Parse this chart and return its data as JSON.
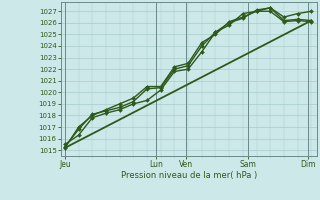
{
  "bg_color": "#cde8e8",
  "grid_color": "#a8cccc",
  "line_color": "#2d5a1b",
  "marker_color": "#2d5a1b",
  "text_color": "#2d5a1b",
  "ylabel_ticks": [
    1015,
    1016,
    1017,
    1018,
    1019,
    1020,
    1021,
    1022,
    1023,
    1024,
    1025,
    1026,
    1027
  ],
  "ylim": [
    1014.5,
    1027.8
  ],
  "xlabel": "Pression niveau de la mer( hPa )",
  "xtick_labels": [
    "Jeu",
    "Lun",
    "Ven",
    "Sam",
    "Dim"
  ],
  "xtick_positions": [
    0.0,
    3.33,
    4.44,
    6.67,
    8.89
  ],
  "vline_positions": [
    0.0,
    3.33,
    4.44,
    6.67,
    8.89
  ],
  "xlim": [
    -0.15,
    9.2
  ],
  "lines": [
    {
      "x": [
        0.0,
        0.5,
        1.0,
        1.5,
        2.0,
        2.5,
        3.0,
        3.5,
        4.0,
        4.5,
        5.0,
        5.5,
        6.0,
        6.5,
        7.0,
        7.5,
        8.0,
        8.5,
        9.0
      ],
      "y": [
        1015.5,
        1016.3,
        1017.8,
        1018.2,
        1018.5,
        1019.0,
        1019.3,
        1020.2,
        1021.8,
        1022.0,
        1023.5,
        1025.2,
        1025.8,
        1026.8,
        1027.0,
        1027.3,
        1026.5,
        1026.8,
        1027.0
      ],
      "lw": 1.0,
      "straight": false
    },
    {
      "x": [
        0.0,
        0.5,
        1.0,
        1.5,
        2.0,
        2.5,
        3.0,
        3.5,
        4.0,
        4.5,
        5.0,
        5.5,
        6.0,
        6.5,
        7.0,
        7.5,
        8.0,
        8.5,
        9.0
      ],
      "y": [
        1015.3,
        1016.8,
        1018.1,
        1018.4,
        1018.7,
        1019.2,
        1020.3,
        1020.4,
        1022.0,
        1022.3,
        1024.0,
        1025.2,
        1026.0,
        1026.4,
        1027.1,
        1027.3,
        1026.2,
        1026.3,
        1026.2
      ],
      "lw": 1.0,
      "straight": false
    },
    {
      "x": [
        0.0,
        0.5,
        1.0,
        1.5,
        2.0,
        2.5,
        3.0,
        3.5,
        4.0,
        4.5,
        5.0,
        5.5,
        6.0,
        6.5,
        7.0,
        7.5,
        8.0,
        8.5,
        9.0
      ],
      "y": [
        1015.2,
        1017.0,
        1018.0,
        1018.5,
        1019.0,
        1019.5,
        1020.5,
        1020.5,
        1022.2,
        1022.5,
        1024.3,
        1025.0,
        1026.1,
        1026.5,
        1027.0,
        1027.0,
        1026.1,
        1026.2,
        1026.1
      ],
      "lw": 1.0,
      "straight": false
    },
    {
      "x": [
        0.0,
        9.0
      ],
      "y": [
        1015.2,
        1026.2
      ],
      "lw": 1.3,
      "straight": true
    }
  ]
}
